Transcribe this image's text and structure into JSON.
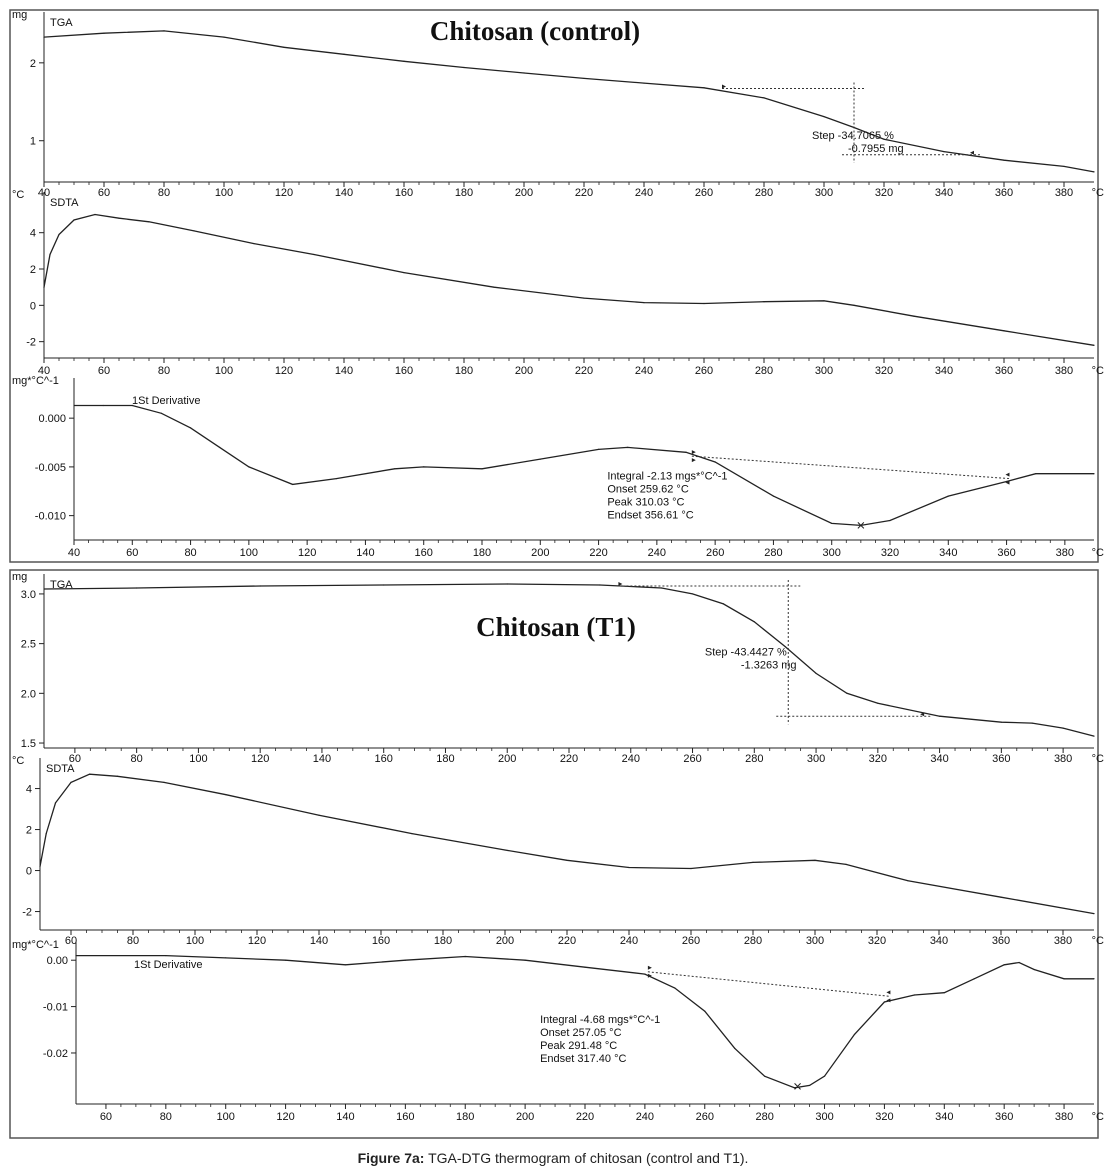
{
  "caption": {
    "label": "Figure 7a:",
    "text": "TGA-DTG thermogram of chitosan (control and T1)."
  },
  "chart_data": [
    {
      "panel": "Chitosan (control)",
      "title": "Chitosan (control)",
      "plots": [
        {
          "type": "line",
          "label": "TGA",
          "ylabel": "mg",
          "xlabel": "°C",
          "xlim": [
            40,
            390
          ],
          "ylim": [
            0.47,
            2.55
          ],
          "yticks": [
            {
              "v": 1,
              "t": "1"
            },
            {
              "v": 2,
              "t": "2"
            }
          ],
          "xticks": [
            40,
            60,
            80,
            100,
            120,
            140,
            160,
            180,
            200,
            220,
            240,
            260,
            280,
            300,
            320,
            340,
            360,
            380
          ],
          "x": [
            40,
            60,
            80,
            100,
            120,
            140,
            160,
            180,
            200,
            220,
            240,
            260,
            280,
            300,
            310,
            320,
            340,
            360,
            380,
            390
          ],
          "y": [
            2.33,
            2.38,
            2.41,
            2.33,
            2.2,
            2.11,
            2.02,
            1.94,
            1.87,
            1.8,
            1.74,
            1.68,
            1.55,
            1.31,
            1.17,
            1.02,
            0.86,
            0.75,
            0.67,
            0.6
          ],
          "annotations": {
            "step_lines": {
              "x1": 266,
              "y1": 1.67,
              "x2": 350,
              "y2": 0.82,
              "x_mid": 310
            },
            "text": [
              "Step  -34.7065 %",
              "-0.7955 mg"
            ],
            "text_pos": {
              "x": 296,
              "y": 1.02
            }
          }
        },
        {
          "type": "line",
          "label": "SDTA",
          "ylabel": "°C",
          "xlabel": "°C",
          "xlim": [
            40,
            390
          ],
          "ylim": [
            -2.9,
            5.8
          ],
          "yticks": [
            {
              "v": -2,
              "t": "-2"
            },
            {
              "v": 0,
              "t": "0"
            },
            {
              "v": 2,
              "t": "2"
            },
            {
              "v": 4,
              "t": "4"
            }
          ],
          "xticks": [
            40,
            60,
            80,
            100,
            120,
            140,
            160,
            180,
            200,
            220,
            240,
            260,
            280,
            300,
            320,
            340,
            360,
            380
          ],
          "x": [
            40,
            42,
            45,
            50,
            57,
            65,
            75,
            90,
            110,
            130,
            160,
            190,
            220,
            240,
            260,
            280,
            300,
            310,
            330,
            360,
            390
          ],
          "y": [
            1.0,
            2.8,
            3.9,
            4.7,
            5.0,
            4.8,
            4.6,
            4.1,
            3.4,
            2.8,
            1.8,
            1.0,
            0.4,
            0.15,
            0.1,
            0.2,
            0.25,
            0.0,
            -0.6,
            -1.4,
            -2.2
          ]
        },
        {
          "type": "line",
          "label": "1St Derivative",
          "ylabel": "mg*°C^-1",
          "xlabel": "°C",
          "xlim": [
            40,
            390
          ],
          "ylim": [
            -0.0125,
            0.0033
          ],
          "yticks": [
            {
              "v": -0.01,
              "t": "-0.010"
            },
            {
              "v": -0.005,
              "t": "-0.005"
            },
            {
              "v": 0.0,
              "t": "0.000"
            }
          ],
          "xticks": [
            40,
            60,
            80,
            100,
            120,
            140,
            160,
            180,
            200,
            220,
            240,
            260,
            280,
            300,
            320,
            340,
            360,
            380
          ],
          "x": [
            40,
            50,
            60,
            70,
            80,
            90,
            100,
            115,
            130,
            150,
            160,
            180,
            200,
            220,
            230,
            250,
            260,
            280,
            300,
            310,
            320,
            340,
            360,
            370,
            390
          ],
          "y": [
            0.0013,
            0.0013,
            0.0013,
            0.0005,
            -0.001,
            -0.003,
            -0.005,
            -0.0068,
            -0.0062,
            -0.0052,
            -0.005,
            -0.0052,
            -0.0042,
            -0.0032,
            -0.003,
            -0.0035,
            -0.0045,
            -0.008,
            -0.0108,
            -0.011,
            -0.0105,
            -0.008,
            -0.0065,
            -0.0057,
            -0.0057
          ],
          "annotations": {
            "baseline": {
              "x1": 252,
              "y1": -0.0039,
              "x2": 361,
              "y2": -0.0062
            },
            "peak": {
              "x": 310,
              "y": -0.011
            },
            "text": [
              "Integral  -2.13 mgs*°C^-1",
              "Onset     259.62 °C",
              "Peak       310.03 °C",
              "Endset   356.61 °C"
            ],
            "text_pos": {
              "x": 223,
              "y": -0.0063
            }
          }
        }
      ]
    },
    {
      "panel": "Chitosan (T1)",
      "title": "Chitosan (T1)",
      "plots": [
        {
          "type": "line",
          "label": "TGA",
          "ylabel": "mg",
          "xlabel": "°C",
          "xlim": [
            50,
            390
          ],
          "ylim": [
            1.45,
            3.12
          ],
          "yticks": [
            {
              "v": 1.5,
              "t": "1.5"
            },
            {
              "v": 2.0,
              "t": "2.0"
            },
            {
              "v": 2.5,
              "t": "2.5"
            },
            {
              "v": 3.0,
              "t": "3.0"
            }
          ],
          "xticks": [
            60,
            80,
            100,
            120,
            140,
            160,
            180,
            200,
            220,
            240,
            260,
            280,
            300,
            320,
            340,
            360,
            380
          ],
          "x": [
            50,
            80,
            120,
            160,
            200,
            230,
            250,
            260,
            270,
            280,
            290,
            300,
            310,
            320,
            340,
            360,
            370,
            380,
            390
          ],
          "y": [
            3.05,
            3.06,
            3.08,
            3.09,
            3.1,
            3.09,
            3.06,
            3.0,
            2.9,
            2.72,
            2.47,
            2.2,
            2.0,
            1.9,
            1.77,
            1.71,
            1.7,
            1.65,
            1.57
          ],
          "annotations": {
            "step_lines": {
              "x1": 236,
              "y1": 3.08,
              "x2": 335,
              "y2": 1.77,
              "x_mid": 291
            },
            "text": [
              "Step  -43.4427 %",
              "-1.3263 mg"
            ],
            "text_pos": {
              "x": 264,
              "y": 2.38
            }
          }
        },
        {
          "type": "line",
          "label": "SDTA",
          "ylabel": "°C",
          "xlabel": "°C",
          "xlim": [
            50,
            390
          ],
          "ylim": [
            -2.9,
            5.1
          ],
          "yticks": [
            {
              "v": -2,
              "t": "-2"
            },
            {
              "v": 0,
              "t": "0"
            },
            {
              "v": 2,
              "t": "2"
            },
            {
              "v": 4,
              "t": "4"
            }
          ],
          "xticks": [
            60,
            80,
            100,
            120,
            140,
            160,
            180,
            200,
            220,
            240,
            260,
            280,
            300,
            320,
            340,
            360,
            380
          ],
          "x": [
            50,
            52,
            55,
            60,
            66,
            75,
            90,
            110,
            140,
            170,
            200,
            220,
            240,
            260,
            280,
            300,
            310,
            330,
            360,
            390
          ],
          "y": [
            0.2,
            1.8,
            3.3,
            4.3,
            4.7,
            4.6,
            4.3,
            3.7,
            2.7,
            1.8,
            1.0,
            0.5,
            0.15,
            0.1,
            0.4,
            0.5,
            0.3,
            -0.5,
            -1.3,
            -2.1
          ]
        },
        {
          "type": "line",
          "label": "1St Derivative",
          "ylabel": "mg*°C^-1",
          "xlabel": "°C",
          "xlim": [
            50,
            390
          ],
          "ylim": [
            -0.031,
            0.0022
          ],
          "yticks": [
            {
              "v": -0.02,
              "t": "-0.02"
            },
            {
              "v": -0.01,
              "t": "-0.01"
            },
            {
              "v": 0.0,
              "t": "0.00"
            }
          ],
          "xticks": [
            60,
            80,
            100,
            120,
            140,
            160,
            180,
            200,
            220,
            240,
            260,
            280,
            300,
            320,
            340,
            360,
            380
          ],
          "x": [
            50,
            80,
            100,
            120,
            140,
            160,
            180,
            200,
            220,
            240,
            250,
            260,
            270,
            280,
            290,
            295,
            300,
            310,
            320,
            330,
            340,
            350,
            360,
            365,
            370,
            380,
            390
          ],
          "y": [
            0.001,
            0.001,
            0.0005,
            0.0,
            -0.001,
            0.0,
            0.0008,
            0.0,
            -0.0015,
            -0.003,
            -0.006,
            -0.011,
            -0.019,
            -0.025,
            -0.0275,
            -0.027,
            -0.025,
            -0.016,
            -0.009,
            -0.0075,
            -0.007,
            -0.004,
            -0.001,
            -0.0005,
            -0.002,
            -0.004,
            -0.004
          ],
          "annotations": {
            "baseline": {
              "x1": 241,
              "y1": -0.0025,
              "x2": 322,
              "y2": -0.0078
            },
            "peak": {
              "x": 291,
              "y": -0.0272
            },
            "text": [
              "Integral  -4.68 mgs*°C^-1",
              "Onset     257.05 °C",
              "Peak       291.48 °C",
              "Endset   317.40 °C"
            ],
            "text_pos": {
              "x": 205,
              "y": -0.0135
            }
          }
        }
      ]
    }
  ]
}
